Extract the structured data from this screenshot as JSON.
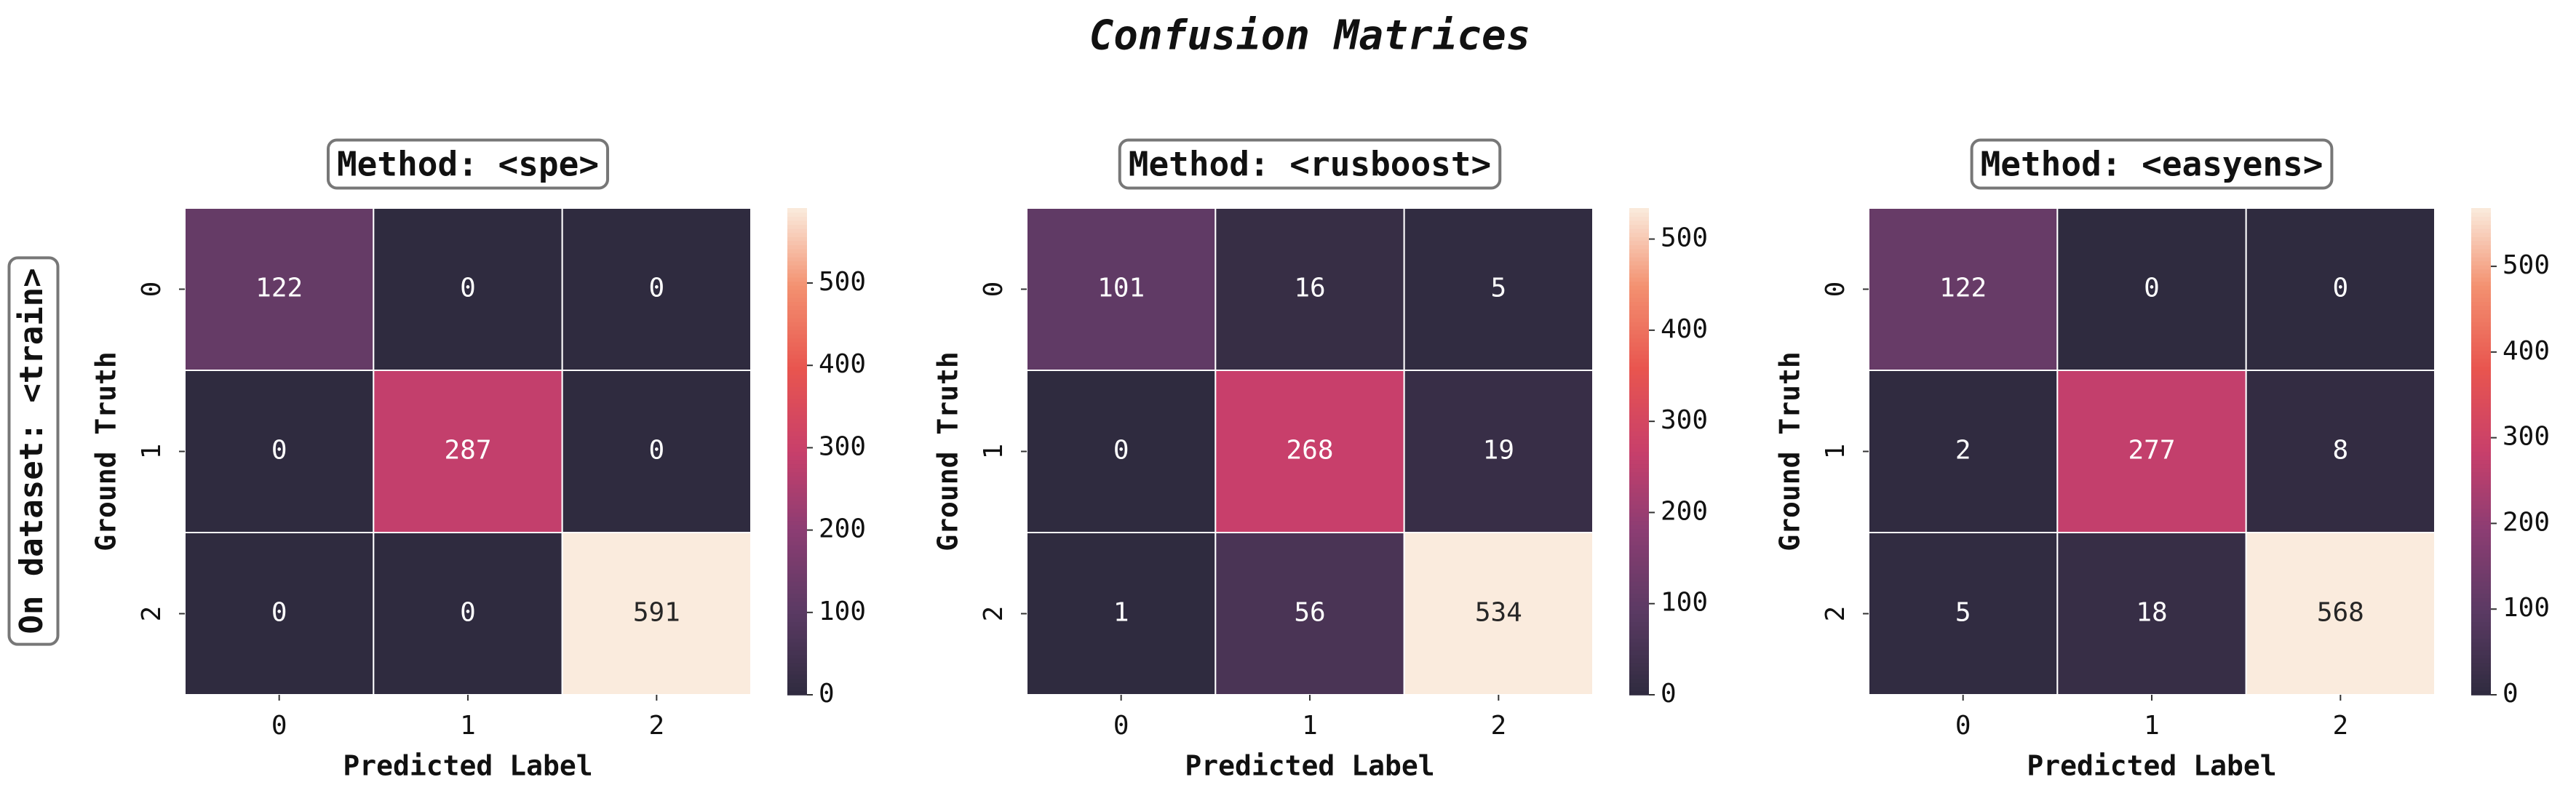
{
  "title": "Confusion Matrices",
  "row_label": "On dataset: <train>",
  "chart_data": [
    {
      "type": "heatmap",
      "title": "Method: <spe>",
      "xlabel": "Predicted Label",
      "ylabel": "Ground Truth",
      "x_categories": [
        "0",
        "1",
        "2"
      ],
      "y_categories": [
        "0",
        "1",
        "2"
      ],
      "values": [
        [
          122,
          0,
          0
        ],
        [
          0,
          287,
          0
        ],
        [
          0,
          0,
          591
        ]
      ],
      "colormap": "rocket",
      "clim": [
        0,
        591
      ],
      "cticks": [
        0,
        100,
        200,
        300,
        400,
        500
      ]
    },
    {
      "type": "heatmap",
      "title": "Method: <rusboost>",
      "xlabel": "Predicted Label",
      "ylabel": "Ground Truth",
      "x_categories": [
        "0",
        "1",
        "2"
      ],
      "y_categories": [
        "0",
        "1",
        "2"
      ],
      "values": [
        [
          101,
          16,
          5
        ],
        [
          0,
          268,
          19
        ],
        [
          1,
          56,
          534
        ]
      ],
      "colormap": "rocket",
      "clim": [
        0,
        534
      ],
      "cticks": [
        0,
        100,
        200,
        300,
        400,
        500
      ]
    },
    {
      "type": "heatmap",
      "title": "Method: <easyens>",
      "xlabel": "Predicted Label",
      "ylabel": "Ground Truth",
      "x_categories": [
        "0",
        "1",
        "2"
      ],
      "y_categories": [
        "0",
        "1",
        "2"
      ],
      "values": [
        [
          122,
          0,
          0
        ],
        [
          2,
          277,
          8
        ],
        [
          5,
          18,
          568
        ]
      ],
      "colormap": "rocket",
      "clim": [
        0,
        568
      ],
      "cticks": [
        0,
        100,
        200,
        300,
        400,
        500
      ]
    }
  ]
}
